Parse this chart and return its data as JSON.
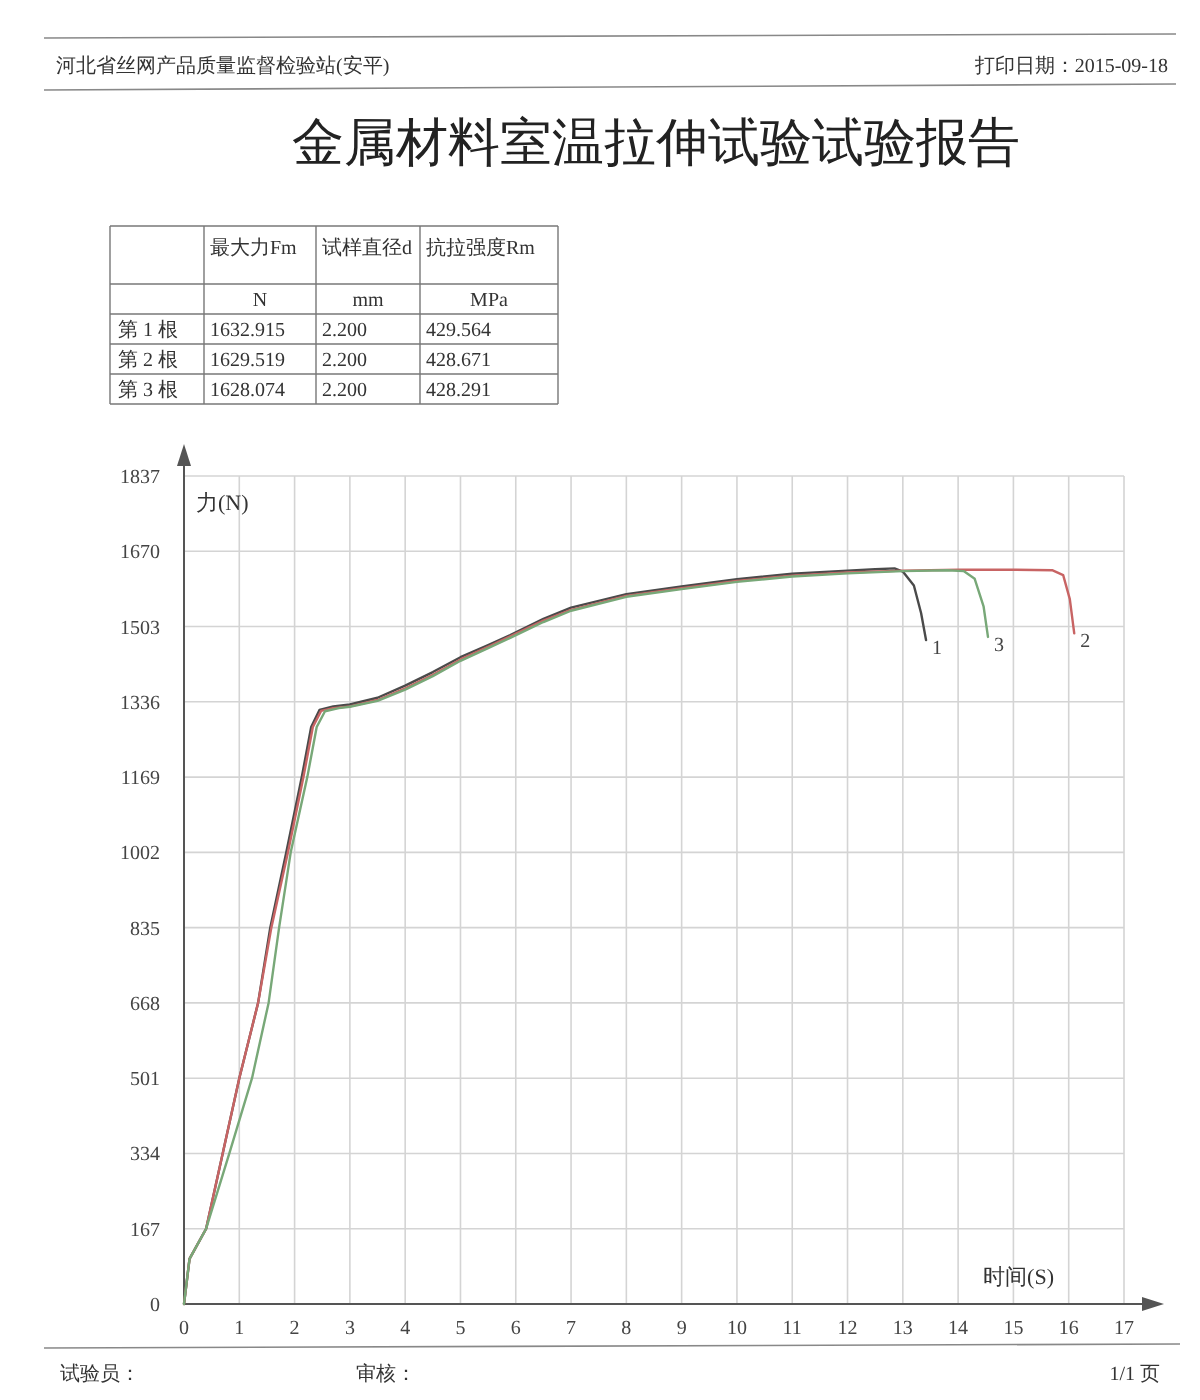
{
  "chart_data": [
    {
      "type": "other",
      "title": "金属材料室温拉伸试验试验报告",
      "annotations": [
        "河北省丝网产品质量监督检验站(安平)",
        "打印日期：2015-09-18",
        "最大力Fm",
        "试样直径d",
        "抗拉强度Rm",
        "N",
        "mm",
        "MPa",
        "第 1 根",
        "1632.915",
        "2.200",
        "429.564",
        "第 2 根",
        "1629.519",
        "2.200",
        "428.671",
        "第 3 根",
        "1628.074",
        "2.200",
        "428.291",
        "试验员：",
        "审核：",
        "1/1 页"
      ]
    },
    {
      "type": "line",
      "xlabel": "时间(S)",
      "ylabel": "力(N)",
      "xlim": [
        0,
        17
      ],
      "xticks": [
        0,
        1,
        2,
        3,
        4,
        5,
        6,
        7,
        8,
        9,
        10,
        11,
        12,
        13,
        14,
        15,
        16,
        17
      ],
      "ylim": [
        0,
        1837
      ],
      "yticks": [
        0,
        167,
        334,
        501,
        668,
        835,
        1002,
        1169,
        1336,
        1503,
        1670,
        1837
      ],
      "grid": true,
      "series": [
        {
          "name": "1",
          "color": "#4a4a4a",
          "x": [
            0,
            0.1,
            0.4,
            0.7,
            1.0,
            1.34,
            1.56,
            1.85,
            2.13,
            2.3,
            2.45,
            2.7,
            3.0,
            3.5,
            4.0,
            4.5,
            5.0,
            5.5,
            5.9,
            6.5,
            7.0,
            8.0,
            9.0,
            10.0,
            11.0,
            12.0,
            12.5,
            12.85,
            13.0,
            13.2,
            13.33,
            13.42
          ],
          "values": [
            0,
            100,
            167,
            334,
            501,
            668,
            835,
            1002,
            1169,
            1280,
            1318,
            1326,
            1330,
            1345,
            1372,
            1402,
            1435,
            1462,
            1484,
            1520,
            1545,
            1575,
            1592,
            1608,
            1620,
            1627,
            1630,
            1632,
            1625,
            1594,
            1533,
            1473
          ]
        },
        {
          "name": "2",
          "color": "#c86464",
          "x": [
            0,
            0.1,
            0.4,
            0.7,
            1.0,
            1.34,
            1.58,
            1.88,
            2.16,
            2.33,
            2.48,
            2.7,
            3.0,
            3.5,
            4.0,
            4.5,
            5.0,
            5.5,
            5.9,
            6.5,
            7.0,
            8.0,
            9.0,
            10.0,
            11.0,
            12.0,
            13.0,
            14.0,
            15.0,
            15.7,
            15.9,
            16.02,
            16.1
          ],
          "values": [
            0,
            100,
            167,
            334,
            501,
            668,
            835,
            1002,
            1169,
            1280,
            1316,
            1322,
            1326,
            1340,
            1366,
            1396,
            1430,
            1458,
            1481,
            1516,
            1540,
            1571,
            1588,
            1604,
            1616,
            1623,
            1627,
            1629,
            1629,
            1628,
            1617,
            1564,
            1488
          ]
        },
        {
          "name": "3",
          "color": "#78a878",
          "x": [
            0,
            0.1,
            0.4,
            0.82,
            1.23,
            1.53,
            1.72,
            1.93,
            2.23,
            2.4,
            2.55,
            2.8,
            3.0,
            3.5,
            4.0,
            4.5,
            5.0,
            5.5,
            5.9,
            6.5,
            7.0,
            8.0,
            9.0,
            10.0,
            11.0,
            12.0,
            13.0,
            13.8,
            14.1,
            14.3,
            14.46,
            14.54
          ],
          "values": [
            0,
            100,
            167,
            334,
            501,
            668,
            835,
            1002,
            1169,
            1280,
            1315,
            1322,
            1325,
            1338,
            1363,
            1393,
            1427,
            1455,
            1478,
            1513,
            1538,
            1569,
            1586,
            1602,
            1614,
            1621,
            1626,
            1628,
            1626,
            1609,
            1548,
            1480
          ]
        }
      ]
    }
  ]
}
